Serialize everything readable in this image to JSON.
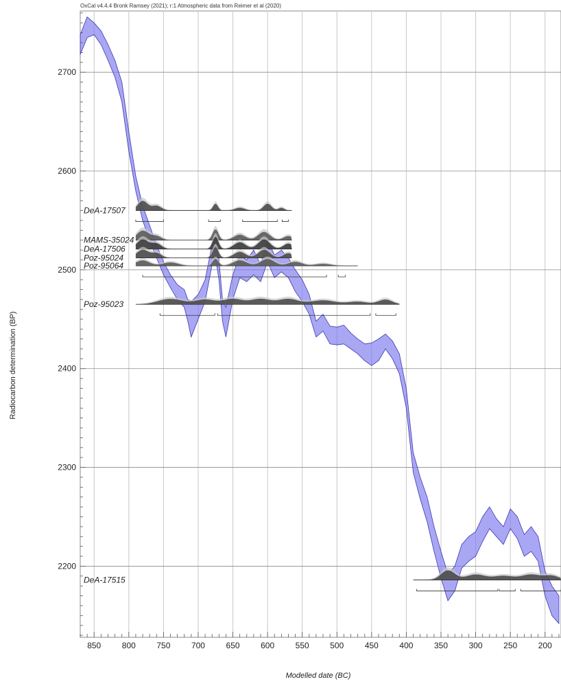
{
  "chart_data": {
    "type": "line",
    "title": "OxCal v4.4.4 Bronk Ramsey (2021); r:1 Atmospheric data from Reimer et al (2020)",
    "xlabel": "Modelled date (BC)",
    "ylabel": "Radiocarbon determination (BP)",
    "xlim": [
      870,
      177
    ],
    "ylim": [
      2128,
      2762
    ],
    "x_ticks": [
      850,
      800,
      750,
      700,
      650,
      600,
      550,
      500,
      450,
      400,
      350,
      300,
      250,
      200
    ],
    "y_ticks": [
      2200,
      2300,
      2400,
      2500,
      2600,
      2700
    ],
    "grid": true,
    "series": [
      {
        "kind": "calibration-band",
        "color": "#7b78ee",
        "x": [
          870,
          860,
          850,
          840,
          830,
          820,
          810,
          800,
          790,
          780,
          770,
          760,
          750,
          740,
          730,
          720,
          715,
          710,
          700,
          690,
          680,
          675,
          670,
          665,
          660,
          650,
          640,
          630,
          620,
          610,
          600,
          590,
          580,
          570,
          560,
          550,
          540,
          530,
          520,
          510,
          500,
          490,
          480,
          470,
          460,
          450,
          440,
          430,
          420,
          410,
          400,
          390,
          380,
          370,
          360,
          350,
          340,
          330,
          320,
          310,
          300,
          290,
          280,
          270,
          260,
          250,
          240,
          230,
          220,
          210,
          200,
          190,
          180
        ],
        "upper": [
          2738,
          2756,
          2750,
          2742,
          2728,
          2712,
          2690,
          2640,
          2595,
          2565,
          2545,
          2525,
          2508,
          2495,
          2485,
          2480,
          2470,
          2468,
          2475,
          2490,
          2525,
          2538,
          2510,
          2470,
          2462,
          2495,
          2515,
          2510,
          2520,
          2505,
          2530,
          2515,
          2520,
          2512,
          2500,
          2490,
          2475,
          2448,
          2455,
          2443,
          2442,
          2444,
          2436,
          2430,
          2425,
          2426,
          2430,
          2435,
          2428,
          2415,
          2380,
          2315,
          2290,
          2270,
          2240,
          2215,
          2192,
          2200,
          2222,
          2230,
          2235,
          2250,
          2260,
          2248,
          2240,
          2258,
          2250,
          2232,
          2240,
          2230,
          2195,
          2180,
          2170
        ],
        "lower": [
          2718,
          2735,
          2738,
          2728,
          2712,
          2695,
          2670,
          2620,
          2580,
          2550,
          2530,
          2512,
          2495,
          2482,
          2470,
          2462,
          2448,
          2432,
          2450,
          2468,
          2505,
          2512,
          2490,
          2448,
          2432,
          2470,
          2492,
          2488,
          2495,
          2488,
          2508,
          2492,
          2498,
          2492,
          2478,
          2468,
          2455,
          2432,
          2438,
          2425,
          2424,
          2425,
          2420,
          2415,
          2408,
          2403,
          2408,
          2420,
          2410,
          2395,
          2360,
          2295,
          2268,
          2245,
          2215,
          2188,
          2165,
          2175,
          2198,
          2205,
          2210,
          2225,
          2238,
          2230,
          2222,
          2238,
          2228,
          2210,
          2215,
          2205,
          2170,
          2150,
          2142
        ]
      }
    ],
    "samples": [
      {
        "name": "DeA-17507",
        "base": 2560,
        "from": 790,
        "to": 565,
        "color": "#444",
        "peaks": [
          [
            780,
            14,
            10
          ],
          [
            760,
            7,
            10
          ],
          [
            675,
            10,
            5
          ],
          [
            640,
            4,
            10
          ],
          [
            600,
            10,
            8
          ],
          [
            580,
            4,
            6
          ]
        ],
        "ranges": [
          [
            790,
            750
          ],
          [
            685,
            668
          ],
          [
            636,
            586
          ],
          [
            579,
            570
          ]
        ]
      },
      {
        "name": "MAMS-35024",
        "base": 2530,
        "from": 790,
        "to": 565,
        "color": "#555",
        "peaks": [
          [
            780,
            14,
            12
          ],
          [
            760,
            6,
            10
          ],
          [
            675,
            16,
            6
          ],
          [
            640,
            8,
            12
          ],
          [
            605,
            12,
            12
          ],
          [
            570,
            6,
            10
          ]
        ],
        "ranges": []
      },
      {
        "name": "DeA-17506",
        "base": 2521,
        "from": 790,
        "to": 565,
        "color": "#333",
        "peaks": [
          [
            780,
            14,
            12
          ],
          [
            760,
            8,
            10
          ],
          [
            675,
            18,
            6
          ],
          [
            640,
            10,
            12
          ],
          [
            605,
            14,
            12
          ],
          [
            570,
            8,
            10
          ]
        ],
        "ranges": []
      },
      {
        "name": "Poz-95024",
        "base": 2512,
        "from": 790,
        "to": 565,
        "color": "#444",
        "peaks": [
          [
            780,
            12,
            12
          ],
          [
            760,
            7,
            10
          ],
          [
            675,
            16,
            6
          ],
          [
            640,
            9,
            12
          ],
          [
            605,
            12,
            12
          ],
          [
            570,
            7,
            10
          ]
        ],
        "ranges": []
      },
      {
        "name": "Poz-95064",
        "base": 2504,
        "from": 790,
        "to": 470,
        "color": "#555",
        "peaks": [
          [
            780,
            8,
            14
          ],
          [
            740,
            5,
            16
          ],
          [
            675,
            10,
            6
          ],
          [
            640,
            8,
            14
          ],
          [
            600,
            10,
            14
          ],
          [
            560,
            6,
            14
          ],
          [
            520,
            3,
            16
          ]
        ],
        "ranges": [
          [
            780,
            515
          ],
          [
            498,
            488
          ]
        ]
      },
      {
        "name": "Poz-95023",
        "base": 2465,
        "from": 790,
        "to": 410,
        "color": "#444",
        "peaks": [
          [
            740,
            8,
            25
          ],
          [
            690,
            7,
            20
          ],
          [
            650,
            8,
            20
          ],
          [
            610,
            8,
            20
          ],
          [
            570,
            8,
            20
          ],
          [
            520,
            6,
            25
          ],
          [
            470,
            4,
            20
          ],
          [
            430,
            7,
            14
          ]
        ],
        "ranges": [
          [
            755,
            676
          ],
          [
            672,
            452
          ],
          [
            444,
            415
          ]
        ]
      },
      {
        "name": "DeA-17515",
        "base": 2186,
        "from": 390,
        "to": 177,
        "color": "#444",
        "peaks": [
          [
            340,
            14,
            14
          ],
          [
            300,
            8,
            20
          ],
          [
            260,
            6,
            20
          ],
          [
            220,
            8,
            20
          ],
          [
            190,
            6,
            15
          ]
        ],
        "ranges": [
          [
            385,
            268
          ],
          [
            266,
            243
          ],
          [
            235,
            177
          ]
        ]
      }
    ]
  }
}
